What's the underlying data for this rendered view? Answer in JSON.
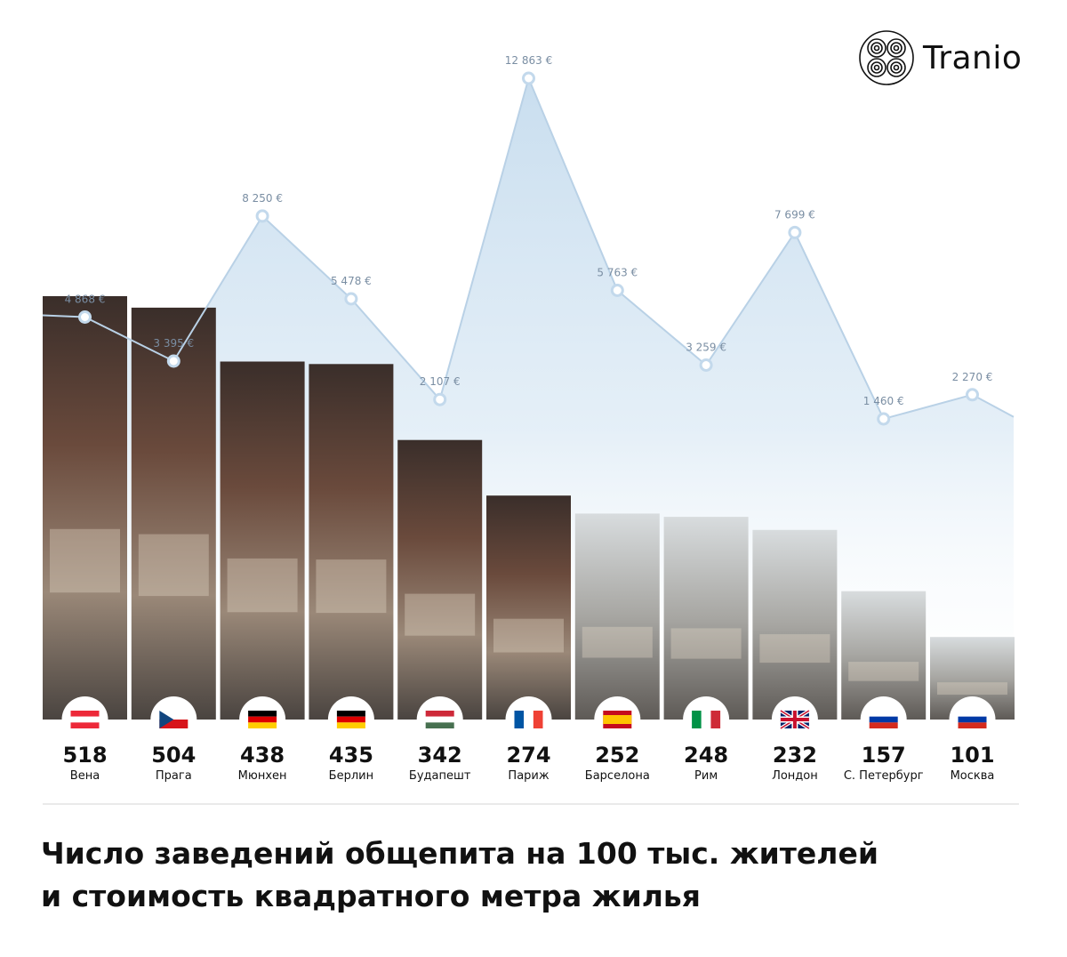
{
  "brand": {
    "name": "Tranio"
  },
  "title": "Число заведений общепита на 100 тыс. жителей\nи стоимость квадратного метра жилья",
  "chart_data": {
    "type": "bar",
    "categories": [
      "Вена",
      "Прага",
      "Мюнхен",
      "Берлин",
      "Будапешт",
      "Париж",
      "Барселона",
      "Рим",
      "Лондон",
      "С. Петербург",
      "Москва"
    ],
    "flags": [
      "austria",
      "czech",
      "germany",
      "germany",
      "hungary",
      "france",
      "spain",
      "italy",
      "uk",
      "russia",
      "russia"
    ],
    "series": [
      {
        "kind": "bar",
        "values": [
          518,
          504,
          438,
          435,
          342,
          274,
          252,
          248,
          232,
          157,
          101
        ],
        "labels": [
          "518",
          "504",
          "438",
          "435",
          "342",
          "274",
          "252",
          "248",
          "232",
          "157",
          "101"
        ]
      },
      {
        "kind": "area",
        "values": [
          4868,
          3395,
          8250,
          5478,
          2107,
          12863,
          5763,
          3259,
          7699,
          1460,
          2270
        ],
        "labels": [
          "4 868 €",
          "3 395 €",
          "8 250 €",
          "5 478 €",
          "2 107 €",
          "12 863 €",
          "5 763 €",
          "3 259 €",
          "7 699 €",
          "1 460 €",
          "2 270 €"
        ]
      }
    ],
    "ylim_bars": [
      0,
      518
    ],
    "ylim_prices": [
      0,
      13000
    ],
    "colors": {
      "area_top": "#c6dcee",
      "line": "#b9d1e6",
      "point_stroke": "#c3d9ec"
    }
  }
}
